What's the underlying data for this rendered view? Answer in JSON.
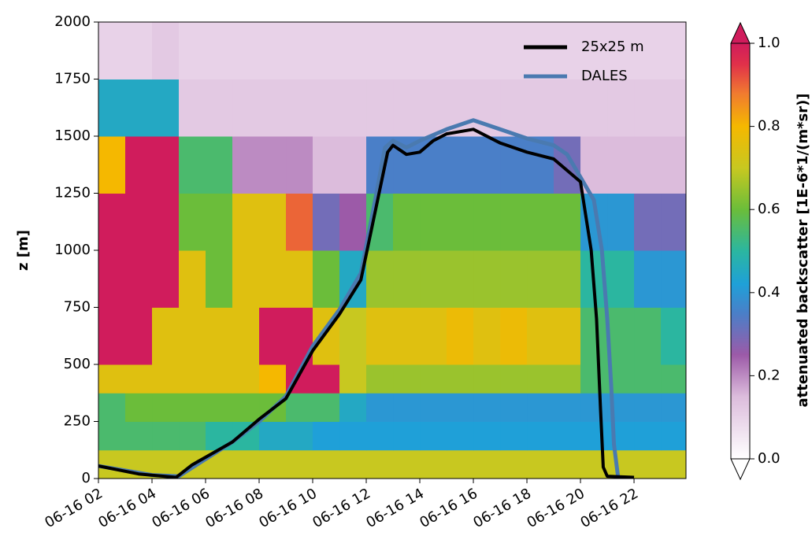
{
  "chart_data": {
    "type": "heatmap",
    "ylabel": "z [m]",
    "colorbar_label": "attenuated backscatter [1E-6*1/(m*sr)]",
    "xlim": [
      2,
      23.94
    ],
    "ylim": [
      0,
      2000
    ],
    "xticks": [
      {
        "value": 2,
        "label": "06-16 02"
      },
      {
        "value": 4,
        "label": "06-16 04"
      },
      {
        "value": 6,
        "label": "06-16 06"
      },
      {
        "value": 8,
        "label": "06-16 08"
      },
      {
        "value": 10,
        "label": "06-16 10"
      },
      {
        "value": 12,
        "label": "06-16 12"
      },
      {
        "value": 14,
        "label": "06-16 14"
      },
      {
        "value": 16,
        "label": "06-16 16"
      },
      {
        "value": 18,
        "label": "06-16 18"
      },
      {
        "value": 20,
        "label": "06-16 20"
      },
      {
        "value": 22,
        "label": "06-16 22"
      }
    ],
    "yticks": [
      0,
      250,
      500,
      750,
      1000,
      1250,
      1500,
      1750,
      2000
    ],
    "clim": [
      0,
      1
    ],
    "cticks": [
      {
        "value": 0,
        "label": "0.0"
      },
      0.2,
      0.4,
      0.6,
      0.8,
      {
        "value": 1,
        "label": "1.0"
      }
    ],
    "colormap": [
      [
        0,
        "#ffffff"
      ],
      [
        0.15,
        "#dcbcdc"
      ],
      [
        0.25,
        "#9c5aa8"
      ],
      [
        0.35,
        "#4a7fc8"
      ],
      [
        0.42,
        "#1fa0d8"
      ],
      [
        0.5,
        "#2bb6a0"
      ],
      [
        0.6,
        "#6bbd3a"
      ],
      [
        0.7,
        "#c8c820"
      ],
      [
        0.8,
        "#f5b800"
      ],
      [
        0.88,
        "#f07a30"
      ],
      [
        0.95,
        "#e0304a"
      ],
      [
        1,
        "#d01c5c"
      ]
    ],
    "x_edges": [
      2,
      3,
      4,
      5,
      6,
      7,
      8,
      9,
      10,
      11,
      12,
      13,
      14,
      15,
      16,
      17,
      18,
      19,
      20,
      21,
      22,
      23,
      23.94
    ],
    "y_edges": [
      0,
      125,
      250,
      375,
      500,
      750,
      1000,
      1250,
      1500,
      1750,
      2000
    ],
    "values": [
      [
        0.7,
        0.7,
        0.7,
        0.7,
        0.7,
        0.7,
        0.7,
        0.7,
        0.7,
        0.7,
        0.7,
        0.7,
        0.7,
        0.7,
        0.7,
        0.7,
        0.7,
        0.7,
        0.7,
        0.7,
        0.7,
        0.7
      ],
      [
        0.55,
        0.55,
        0.55,
        0.55,
        0.5,
        0.5,
        0.45,
        0.45,
        0.42,
        0.42,
        0.42,
        0.42,
        0.42,
        0.42,
        0.42,
        0.42,
        0.42,
        0.42,
        0.42,
        0.42,
        0.42,
        0.42
      ],
      [
        0.55,
        0.6,
        0.6,
        0.6,
        0.6,
        0.6,
        0.6,
        0.55,
        0.55,
        0.45,
        0.4,
        0.4,
        0.4,
        0.4,
        0.4,
        0.4,
        0.4,
        0.4,
        0.4,
        0.4,
        0.4,
        0.4
      ],
      [
        0.75,
        0.75,
        0.75,
        0.75,
        0.75,
        0.75,
        0.8,
        1,
        1,
        0.7,
        0.65,
        0.65,
        0.65,
        0.65,
        0.65,
        0.65,
        0.65,
        0.65,
        0.55,
        0.55,
        0.55,
        0.55
      ],
      [
        1,
        1,
        0.75,
        0.75,
        0.75,
        0.75,
        1,
        1,
        0.75,
        0.7,
        0.75,
        0.75,
        0.75,
        0.78,
        0.75,
        0.78,
        0.75,
        0.75,
        0.55,
        0.55,
        0.55,
        0.5
      ],
      [
        1,
        1,
        1,
        0.75,
        0.6,
        0.75,
        0.75,
        0.75,
        0.6,
        0.45,
        0.65,
        0.65,
        0.65,
        0.65,
        0.65,
        0.65,
        0.65,
        0.65,
        0.5,
        0.5,
        0.4,
        0.4
      ],
      [
        1,
        1,
        1,
        0.6,
        0.6,
        0.75,
        0.75,
        0.9,
        0.3,
        0.25,
        0.55,
        0.6,
        0.6,
        0.6,
        0.6,
        0.6,
        0.6,
        0.6,
        0.4,
        0.4,
        0.3,
        0.3
      ],
      [
        0.8,
        1,
        1,
        0.55,
        0.55,
        0.2,
        0.2,
        0.2,
        0.15,
        0.15,
        0.35,
        0.35,
        0.35,
        0.35,
        0.35,
        0.35,
        0.35,
        0.3,
        0.15,
        0.15,
        0.15,
        0.15
      ],
      [
        0.45,
        0.45,
        0.45,
        0.12,
        0.12,
        0.12,
        0.12,
        0.12,
        0.12,
        0.12,
        0.12,
        0.12,
        0.12,
        0.12,
        0.12,
        0.12,
        0.12,
        0.12,
        0.12,
        0.12,
        0.12,
        0.12
      ],
      [
        0.1,
        0.1,
        0.12,
        0.1,
        0.1,
        0.1,
        0.1,
        0.1,
        0.1,
        0.1,
        0.1,
        0.1,
        0.1,
        0.1,
        0.1,
        0.1,
        0.1,
        0.1,
        0.1,
        0.1,
        0.1,
        0.1
      ]
    ],
    "series": [
      {
        "name": "25x25 m",
        "color": "#000000",
        "x": [
          2,
          3.5,
          4.9,
          5.5,
          7,
          8,
          9,
          10,
          11,
          11.8,
          12.3,
          12.8,
          13,
          13.5,
          14,
          14.5,
          15,
          16,
          17,
          18,
          19,
          19.5,
          20,
          20.4,
          20.6,
          20.75,
          20.85,
          21,
          22
        ],
        "values": [
          55,
          20,
          5,
          60,
          160,
          260,
          350,
          560,
          720,
          870,
          1150,
          1430,
          1460,
          1420,
          1430,
          1480,
          1510,
          1530,
          1470,
          1430,
          1400,
          1350,
          1300,
          1000,
          700,
          300,
          50,
          10,
          5
        ]
      },
      {
        "name": "DALES",
        "color": "#4a7ab0",
        "x": [
          2,
          4,
          5,
          7,
          8,
          9,
          10,
          11,
          11.8,
          12.3,
          12.7,
          13,
          13.5,
          14,
          15,
          16,
          17,
          18,
          19,
          19.5,
          20,
          20.5,
          20.8,
          21,
          21.15,
          21.25,
          21.4
        ],
        "values": [
          55,
          15,
          10,
          160,
          250,
          360,
          580,
          740,
          900,
          1200,
          1450,
          1480,
          1450,
          1480,
          1530,
          1570,
          1530,
          1490,
          1460,
          1420,
          1320,
          1220,
          1000,
          700,
          400,
          150,
          10
        ]
      }
    ]
  }
}
